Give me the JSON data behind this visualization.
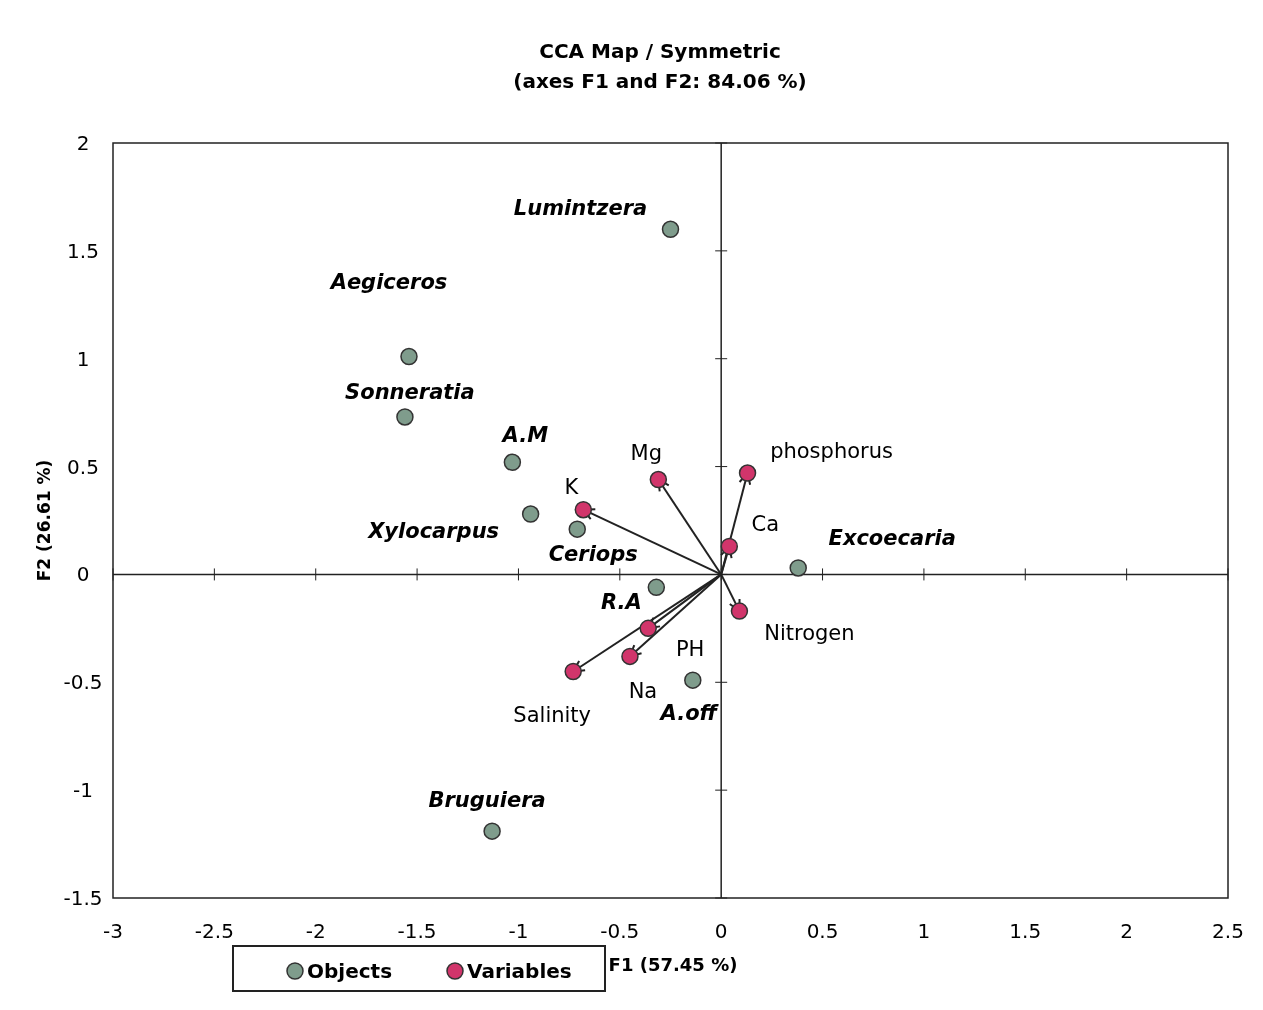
{
  "chart_data": {
    "type": "scatter",
    "title": "CCA Map / Symmetric",
    "subtitle": "(axes F1 and F2: 84.06 %)",
    "xlabel": "F1 (57.45 %)",
    "ylabel": "F2 (26.61 %)",
    "xlim": [
      -3,
      2.5
    ],
    "xticks": [
      -3,
      -2.5,
      -2,
      -1.5,
      -1,
      -0.5,
      0,
      0.5,
      1,
      1.5,
      2,
      2.5
    ],
    "ylim": [
      -1.5,
      2
    ],
    "yticks": [
      -1.5,
      -1,
      -0.5,
      0,
      0.5,
      1,
      1.5,
      2
    ],
    "legend": "bottom",
    "marker": "circle",
    "series": [
      {
        "name": "Objects",
        "color": "#7f9c8c",
        "x": [
          -0.25,
          -1.54,
          -1.56,
          -1.03,
          -0.94,
          -0.71,
          -0.32,
          0.38,
          -0.14,
          -1.13
        ],
        "values": [
          1.6,
          1.01,
          0.73,
          0.52,
          0.28,
          0.21,
          -0.06,
          0.03,
          -0.49,
          -1.19
        ]
      },
      {
        "name": "Variables",
        "color": "#d1356b",
        "x": [
          -0.68,
          -0.31,
          0.13,
          0.04,
          0.09,
          -0.36,
          -0.45,
          -0.73
        ],
        "values": [
          0.3,
          0.44,
          0.47,
          0.13,
          -0.17,
          -0.25,
          -0.38,
          -0.45
        ]
      }
    ],
    "annotations": [
      {
        "text": "Lumintzera",
        "x": -0.25,
        "y": 1.6
      },
      {
        "text": "Aegiceros",
        "x": -1.54,
        "y": 1.01
      },
      {
        "text": "Sonneratia",
        "x": -1.56,
        "y": 0.73
      },
      {
        "text": "A.M",
        "x": -1.03,
        "y": 0.52
      },
      {
        "text": "Xylocarpus",
        "x": -0.94,
        "y": 0.28
      },
      {
        "text": "Ceriops",
        "x": -0.71,
        "y": 0.21
      },
      {
        "text": "R.A",
        "x": -0.32,
        "y": -0.06
      },
      {
        "text": "Excoecaria",
        "x": 0.38,
        "y": 0.03
      },
      {
        "text": "A.off",
        "x": -0.14,
        "y": -0.49
      },
      {
        "text": "Bruguiera",
        "x": -1.13,
        "y": -1.19
      },
      {
        "text": "K",
        "x": -0.68,
        "y": 0.3
      },
      {
        "text": "Mg",
        "x": -0.31,
        "y": 0.44
      },
      {
        "text": "phosphorus",
        "x": 0.13,
        "y": 0.47
      },
      {
        "text": "Ca",
        "x": 0.04,
        "y": 0.13
      },
      {
        "text": "Nitrogen",
        "x": 0.09,
        "y": -0.17
      },
      {
        "text": "PH",
        "x": -0.36,
        "y": -0.25
      },
      {
        "text": "Na",
        "x": -0.45,
        "y": -0.38
      },
      {
        "text": "Salinity",
        "x": -0.73,
        "y": -0.45
      }
    ]
  }
}
